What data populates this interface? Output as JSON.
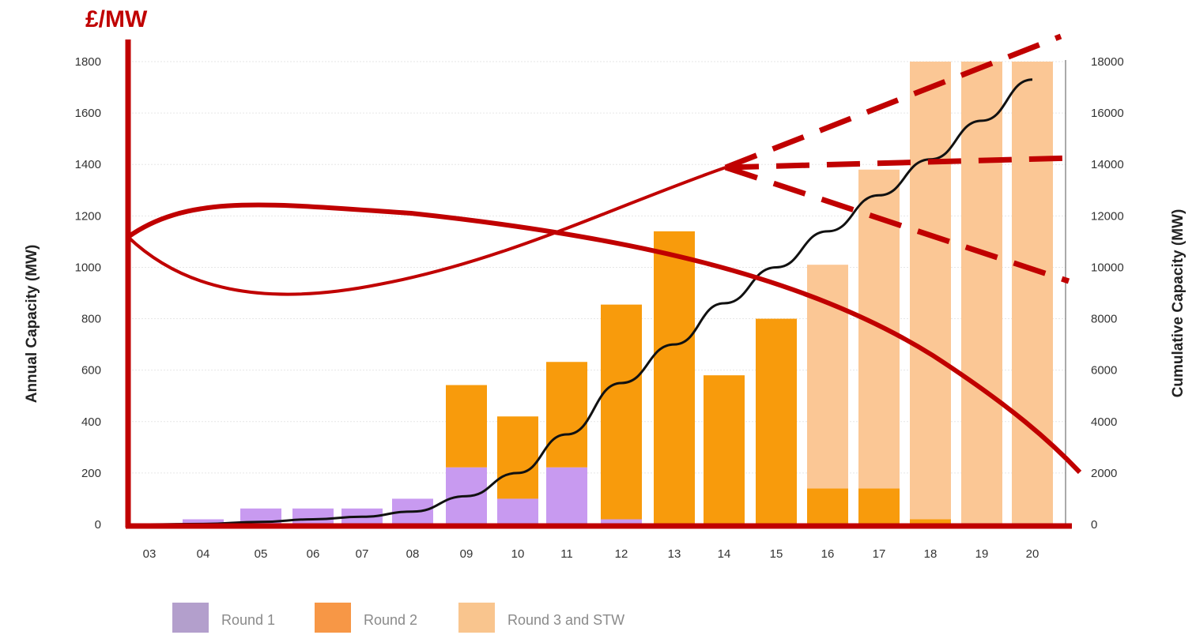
{
  "chart_data": {
    "type": "bar",
    "categories": [
      "03",
      "04",
      "05",
      "06",
      "07",
      "08",
      "09",
      "10",
      "11",
      "12",
      "13",
      "14",
      "15",
      "16",
      "17",
      "18",
      "19",
      "20"
    ],
    "series": [
      {
        "name": "Round 1",
        "color": "#c89af0",
        "values": [
          0,
          20,
          62,
          62,
          62,
          100,
          222,
          100,
          222,
          20,
          0,
          0,
          0,
          0,
          0,
          0,
          0,
          0
        ]
      },
      {
        "name": "Round 2",
        "color": "#f89b0c",
        "values": [
          0,
          0,
          0,
          0,
          0,
          0,
          320,
          320,
          410,
          835,
          1140,
          580,
          800,
          140,
          140,
          20,
          0,
          0
        ]
      },
      {
        "name": "Round 3 and STW",
        "color": "#fbc795",
        "values": [
          0,
          0,
          0,
          0,
          0,
          0,
          0,
          0,
          0,
          0,
          0,
          0,
          0,
          870,
          1240,
          1780,
          1800,
          1800
        ]
      }
    ],
    "cumulative": {
      "axis": "right",
      "values": [
        0,
        20,
        100,
        200,
        300,
        500,
        1100,
        2000,
        3500,
        5500,
        7000,
        8600,
        10000,
        11400,
        12800,
        14200,
        15700,
        17300
      ]
    },
    "left_axis": {
      "label": "Annual Capacity (MW)",
      "range": [
        0,
        1800
      ],
      "ticks": [
        "0",
        "200",
        "400",
        "600",
        "800",
        "1000",
        "1200",
        "1400",
        "1600",
        "1800"
      ]
    },
    "right_axis": {
      "label": "Cumulative Capacity (MW)",
      "range": [
        0,
        18000
      ],
      "ticks": [
        "0",
        "2000",
        "4000",
        "6000",
        "8000",
        "10000",
        "12000",
        "14000",
        "16000",
        "18000"
      ]
    },
    "overlay": {
      "axis_label": "£/MW",
      "color": "#c00000",
      "curves": [
        "cost curve rising then projected scenarios",
        "cost curve falling"
      ]
    },
    "grid": true,
    "legend_position": "bottom"
  }
}
